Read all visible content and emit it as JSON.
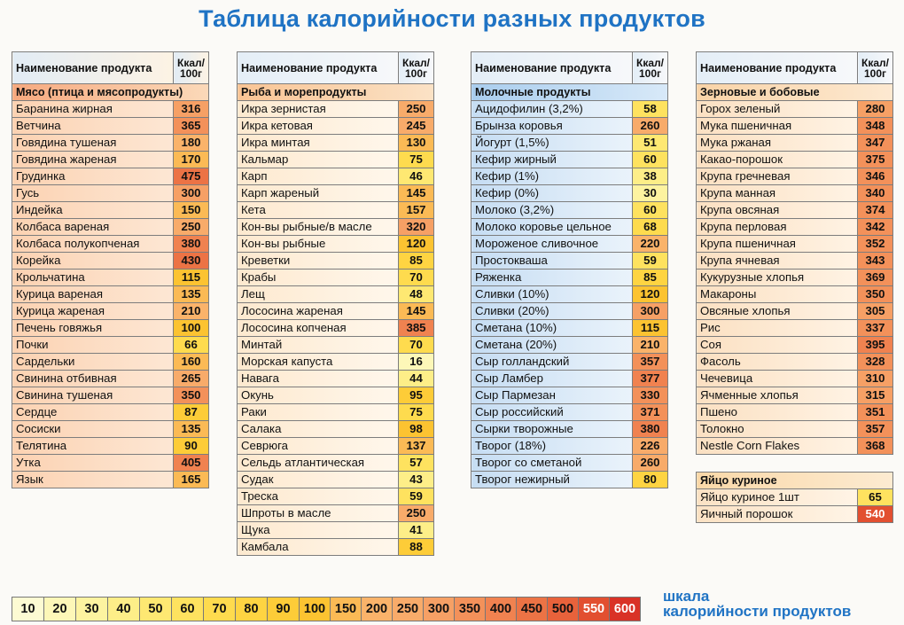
{
  "title": "Таблица калорийности разных продуктов",
  "header": {
    "name": "Наименование продукта",
    "kcal_line1": "Ккал/",
    "kcal_line2": "100г"
  },
  "colors": {
    "title_blue": "#1f73c4",
    "v_10": "#fdfbd3",
    "v_20": "#fdf7b8",
    "v_30": "#fdf3a0",
    "v_40": "#fdee88",
    "v_50": "#fee872",
    "v_60": "#fee25f",
    "v_70": "#fedb4e",
    "v_80": "#fed442",
    "v_90": "#fdcc38",
    "v_100": "#fcc331",
    "v_150": "#fbba55",
    "v_200": "#fab36a",
    "v_250": "#f8ab6a",
    "v_300": "#f6a065",
    "v_350": "#f3915a",
    "v_400": "#f08250",
    "v_450": "#ec7345",
    "v_500": "#e8623b",
    "v_550": "#e24f30",
    "v_600": "#d93226"
  },
  "meat": {
    "category": "Мясо (птица и мясопродукты)",
    "items": [
      {
        "name": "Баранина жирная",
        "kcal": "316"
      },
      {
        "name": "Ветчина",
        "kcal": "365"
      },
      {
        "name": "Говядина тушеная",
        "kcal": "180"
      },
      {
        "name": "Говядина жареная",
        "kcal": "170"
      },
      {
        "name": "Грудинка",
        "kcal": "475"
      },
      {
        "name": "Гусь",
        "kcal": "300"
      },
      {
        "name": "Индейка",
        "kcal": "150"
      },
      {
        "name": "Колбаса вареная",
        "kcal": "250"
      },
      {
        "name": "Колбаса полукопченая",
        "kcal": "380"
      },
      {
        "name": "Корейка",
        "kcal": "430"
      },
      {
        "name": "Крольчатина",
        "kcal": "115"
      },
      {
        "name": "Курица вареная",
        "kcal": "135"
      },
      {
        "name": "Курица жареная",
        "kcal": "210"
      },
      {
        "name": "Печень говяжья",
        "kcal": "100"
      },
      {
        "name": "Почки",
        "kcal": "66"
      },
      {
        "name": "Сардельки",
        "kcal": "160"
      },
      {
        "name": "Свинина отбивная",
        "kcal": "265"
      },
      {
        "name": "Свинина тушеная",
        "kcal": "350"
      },
      {
        "name": "Сердце",
        "kcal": "87"
      },
      {
        "name": "Сосиски",
        "kcal": "135"
      },
      {
        "name": "Телятина",
        "kcal": "90"
      },
      {
        "name": "Утка",
        "kcal": "405"
      },
      {
        "name": "Язык",
        "kcal": "165"
      }
    ]
  },
  "fish": {
    "category": "Рыба и морепродукты",
    "items": [
      {
        "name": "Икра зернистая",
        "kcal": "250"
      },
      {
        "name": "Икра кетовая",
        "kcal": "245"
      },
      {
        "name": "Икра минтая",
        "kcal": "130"
      },
      {
        "name": "Кальмар",
        "kcal": "75"
      },
      {
        "name": "Карп",
        "kcal": "46"
      },
      {
        "name": "Карп жареный",
        "kcal": "145"
      },
      {
        "name": "Кета",
        "kcal": "157"
      },
      {
        "name": "Кон-вы рыбные/в масле",
        "kcal": "320"
      },
      {
        "name": "Кон-вы рыбные",
        "kcal": "120"
      },
      {
        "name": "Креветки",
        "kcal": "85"
      },
      {
        "name": "Крабы",
        "kcal": "70"
      },
      {
        "name": "Лещ",
        "kcal": "48"
      },
      {
        "name": "Лососина жареная",
        "kcal": "145"
      },
      {
        "name": "Лососина копченая",
        "kcal": "385"
      },
      {
        "name": "Минтай",
        "kcal": "70"
      },
      {
        "name": "Морская капуста",
        "kcal": "16"
      },
      {
        "name": "Навага",
        "kcal": "44"
      },
      {
        "name": "Окунь",
        "kcal": "95"
      },
      {
        "name": "Раки",
        "kcal": "75"
      },
      {
        "name": "Салака",
        "kcal": "98"
      },
      {
        "name": "Севрюга",
        "kcal": "137"
      },
      {
        "name": "Сельдь атлантическая",
        "kcal": "57"
      },
      {
        "name": "Судак",
        "kcal": "43"
      },
      {
        "name": "Треска",
        "kcal": "59"
      },
      {
        "name": "Шпроты в масле",
        "kcal": "250"
      },
      {
        "name": "Щука",
        "kcal": "41"
      },
      {
        "name": "Камбала",
        "kcal": "88"
      }
    ]
  },
  "dairy": {
    "category": "Молочные продукты",
    "items": [
      {
        "name": "Ацидофилин (3,2%)",
        "kcal": "58"
      },
      {
        "name": "Брынза коровья",
        "kcal": "260"
      },
      {
        "name": "Йогурт (1,5%)",
        "kcal": "51"
      },
      {
        "name": "Кефир жирный",
        "kcal": "60"
      },
      {
        "name": "Кефир (1%)",
        "kcal": "38"
      },
      {
        "name": "Кефир (0%)",
        "kcal": "30"
      },
      {
        "name": "Молоко (3,2%)",
        "kcal": "60"
      },
      {
        "name": "Молоко коровье цельное",
        "kcal": "68"
      },
      {
        "name": "Мороженое сливочное",
        "kcal": "220"
      },
      {
        "name": "Простокваша",
        "kcal": "59"
      },
      {
        "name": "Ряженка",
        "kcal": "85"
      },
      {
        "name": "Сливки (10%)",
        "kcal": "120"
      },
      {
        "name": "Сливки (20%)",
        "kcal": "300"
      },
      {
        "name": "Сметана (10%)",
        "kcal": "115"
      },
      {
        "name": "Сметана (20%)",
        "kcal": "210"
      },
      {
        "name": "Сыр голландский",
        "kcal": "357"
      },
      {
        "name": "Сыр Ламбер",
        "kcal": "377"
      },
      {
        "name": "Сыр Пармезан",
        "kcal": "330"
      },
      {
        "name": "Сыр российский",
        "kcal": "371"
      },
      {
        "name": "Сырки творожные",
        "kcal": "380"
      },
      {
        "name": "Творог (18%)",
        "kcal": "226"
      },
      {
        "name": "Творог со сметаной",
        "kcal": "260"
      },
      {
        "name": "Творог нежирный",
        "kcal": "80"
      }
    ]
  },
  "grain": {
    "category": "Зерновые и бобовые",
    "items": [
      {
        "name": "Горох зеленый",
        "kcal": "280"
      },
      {
        "name": "Мука пшеничная",
        "kcal": "348"
      },
      {
        "name": "Мука ржаная",
        "kcal": "347"
      },
      {
        "name": "Какао-порошок",
        "kcal": "375"
      },
      {
        "name": "Крупа гречневая",
        "kcal": "346"
      },
      {
        "name": "Крупа манная",
        "kcal": "340"
      },
      {
        "name": "Крупа овсяная",
        "kcal": "374"
      },
      {
        "name": "Крупа перловая",
        "kcal": "342"
      },
      {
        "name": "Крупа пшеничная",
        "kcal": "352"
      },
      {
        "name": "Крупа ячневая",
        "kcal": "343"
      },
      {
        "name": "Кукурузные хлопья",
        "kcal": "369"
      },
      {
        "name": "Макароны",
        "kcal": "350"
      },
      {
        "name": "Овсяные хлопья",
        "kcal": "305"
      },
      {
        "name": "Рис",
        "kcal": "337"
      },
      {
        "name": "Соя",
        "kcal": "395"
      },
      {
        "name": "Фасоль",
        "kcal": "328"
      },
      {
        "name": "Чечевица",
        "kcal": "310"
      },
      {
        "name": "Ячменные хлопья",
        "kcal": "315"
      },
      {
        "name": "Пшено",
        "kcal": "351"
      },
      {
        "name": "Толокно",
        "kcal": "357"
      },
      {
        "name": "Nestle Corn Flakes",
        "kcal": "368"
      }
    ]
  },
  "egg": {
    "category": "Яйцо куриное",
    "items": [
      {
        "name": "Яйцо куриное 1шт",
        "kcal": "65"
      },
      {
        "name": "Яичный порошок",
        "kcal": "540"
      }
    ]
  },
  "scale": {
    "values": [
      "10",
      "20",
      "30",
      "40",
      "50",
      "60",
      "70",
      "80",
      "90",
      "100",
      "150",
      "200",
      "250",
      "300",
      "350",
      "400",
      "450",
      "500",
      "550",
      "600"
    ],
    "label_line1": "шкала",
    "label_line2": "калорийности продуктов"
  }
}
